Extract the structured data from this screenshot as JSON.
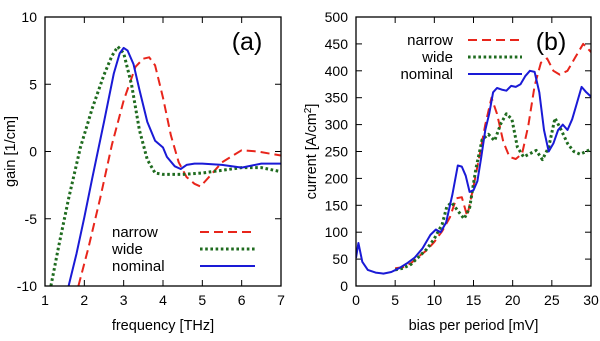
{
  "chart_data": [
    {
      "type": "line",
      "panel_label": "(a)",
      "xlabel": "frequency [THz]",
      "ylabel": "gain [1/cm]",
      "xlim": [
        1,
        7
      ],
      "ylim": [
        -10,
        10
      ],
      "xticks": [
        1,
        2,
        3,
        4,
        5,
        6,
        7
      ],
      "yticks": [
        -10,
        -5,
        0,
        5,
        10
      ],
      "grid": false,
      "legend_position": "bottom-right",
      "series": [
        {
          "name": "narrow",
          "color": "#e8251b",
          "style": "dashed",
          "x": [
            1.85,
            2.1,
            2.4,
            2.7,
            3.0,
            3.3,
            3.5,
            3.65,
            3.8,
            4.0,
            4.2,
            4.4,
            4.6,
            4.8,
            4.95,
            5.2,
            5.5,
            6.0,
            6.4,
            7.0
          ],
          "y": [
            -10,
            -7.2,
            -3.5,
            0.5,
            3.8,
            6.3,
            6.9,
            7.0,
            6.4,
            4.0,
            1.2,
            -0.8,
            -1.9,
            -2.4,
            -2.6,
            -1.8,
            -0.8,
            0.1,
            0.0,
            -0.3
          ]
        },
        {
          "name": "wide",
          "color": "#1f6b1f",
          "style": "dotted",
          "x": [
            1.15,
            1.35,
            1.6,
            1.9,
            2.2,
            2.5,
            2.7,
            2.85,
            3.0,
            3.2,
            3.4,
            3.6,
            3.8,
            4.0,
            4.5,
            5.0,
            5.5,
            6.0,
            6.5,
            7.0
          ],
          "y": [
            -10,
            -7.0,
            -3.5,
            0.3,
            3.2,
            5.7,
            7.1,
            7.8,
            7.3,
            5.0,
            1.6,
            -0.6,
            -1.6,
            -1.7,
            -1.7,
            -1.6,
            -1.4,
            -1.2,
            -1.2,
            -1.5
          ]
        },
        {
          "name": "nominal",
          "color": "#1a1ad6",
          "style": "solid",
          "x": [
            1.6,
            1.8,
            2.0,
            2.2,
            2.5,
            2.75,
            2.9,
            3.0,
            3.1,
            3.25,
            3.4,
            3.6,
            3.8,
            4.0,
            4.1,
            4.3,
            4.45,
            4.6,
            4.8,
            5.0,
            5.5,
            6.0,
            6.5,
            7.0
          ],
          "y": [
            -10,
            -7.6,
            -4.9,
            -2.0,
            2.2,
            5.8,
            7.3,
            7.7,
            7.5,
            6.5,
            4.6,
            2.2,
            0.8,
            0.3,
            -0.4,
            -1.1,
            -1.3,
            -1.0,
            -0.9,
            -0.9,
            -1.0,
            -1.2,
            -0.9,
            -0.9
          ]
        }
      ]
    },
    {
      "type": "line",
      "panel_label": "(b)",
      "xlabel": "bias per period [mV]",
      "ylabel": "current [A/cm",
      "ylabel_sup": "2",
      "ylabel_end": "]",
      "xlim": [
        0,
        30
      ],
      "ylim": [
        0,
        500
      ],
      "xticks": [
        0,
        5,
        10,
        15,
        20,
        25,
        30
      ],
      "yticks": [
        0,
        50,
        100,
        150,
        200,
        250,
        300,
        350,
        400,
        450,
        500
      ],
      "grid": false,
      "legend_position": "top-left",
      "series": [
        {
          "name": "narrow",
          "color": "#e8251b",
          "style": "dashed",
          "x": [
            5,
            6,
            7,
            8,
            9,
            10,
            11,
            12,
            12.8,
            13.5,
            14.2,
            15,
            15.8,
            16.5,
            17.3,
            18,
            18.8,
            19.6,
            20.4,
            21.2,
            22,
            22.8,
            23.6,
            24.4,
            25.2,
            26,
            27,
            28,
            29,
            30
          ],
          "y": [
            33,
            35,
            42,
            55,
            66,
            82,
            102,
            128,
            163,
            165,
            130,
            185,
            245,
            300,
            350,
            320,
            268,
            240,
            236,
            246,
            298,
            372,
            415,
            423,
            400,
            393,
            400,
            425,
            450,
            435
          ]
        },
        {
          "name": "wide",
          "color": "#1f6b1f",
          "style": "dotted",
          "x": [
            5,
            6,
            7,
            8,
            9,
            10,
            11,
            11.6,
            12.2,
            13,
            13.8,
            14.5,
            15.3,
            16.1,
            16.9,
            17.7,
            18.5,
            19.2,
            19.9,
            20.6,
            21.4,
            22.2,
            23,
            23.8,
            24.6,
            25.4,
            26.2,
            27,
            27.8,
            28.6,
            29.4,
            30
          ],
          "y": [
            30,
            33,
            40,
            54,
            68,
            88,
            115,
            148,
            155,
            140,
            125,
            145,
            218,
            272,
            282,
            270,
            302,
            320,
            310,
            258,
            240,
            246,
            252,
            235,
            258,
            312,
            290,
            265,
            250,
            245,
            250,
            255
          ]
        },
        {
          "name": "nominal",
          "color": "#1a1ad6",
          "style": "solid",
          "x": [
            0,
            0.3,
            0.8,
            1.5,
            2.5,
            3.5,
            4.5,
            5.5,
            6.5,
            7.5,
            8.5,
            9.5,
            10.2,
            10.8,
            11.5,
            12.3,
            13,
            13.5,
            14,
            14.5,
            15,
            15.5,
            16,
            16.5,
            17,
            17.5,
            18,
            18.6,
            19.2,
            19.8,
            20.4,
            21,
            21.6,
            22.2,
            22.8,
            23.4,
            24,
            24.6,
            25.2,
            25.8,
            26.4,
            27,
            27.6,
            28.2,
            28.8,
            29.4,
            30
          ],
          "y": [
            52,
            80,
            45,
            30,
            25,
            23,
            26,
            33,
            42,
            53,
            70,
            95,
            105,
            100,
            118,
            170,
            224,
            222,
            205,
            175,
            178,
            195,
            240,
            290,
            320,
            360,
            368,
            365,
            363,
            372,
            370,
            375,
            390,
            400,
            398,
            360,
            290,
            250,
            265,
            290,
            300,
            290,
            310,
            340,
            370,
            360,
            352
          ]
        }
      ]
    }
  ]
}
